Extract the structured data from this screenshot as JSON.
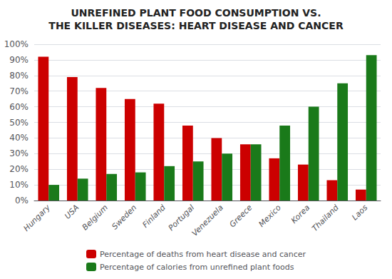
{
  "chart_data": {
    "type": "bar",
    "title": "UNREFINED PLANT FOOD CONSUMPTION VS.",
    "subtitle": "THE KILLER DISEASES: HEART DISEASE AND CANCER",
    "categories": [
      "Hungary",
      "USA",
      "Belgium",
      "Sweden",
      "Finland",
      "Portugal",
      "Venezuela",
      "Greece",
      "Mexico",
      "Korea",
      "Thailand",
      "Laos"
    ],
    "series": [
      {
        "name": "Percentage of deaths from heart disease and cancer",
        "color": "#cc0000",
        "values": [
          92,
          79,
          72,
          65,
          62,
          48,
          40,
          36,
          27,
          23,
          13,
          7
        ]
      },
      {
        "name": "Percentage of calories from unrefined plant foods",
        "color": "#1a7a1a",
        "values": [
          10,
          14,
          17,
          18,
          22,
          25,
          30,
          36,
          48,
          60,
          75,
          93
        ]
      }
    ],
    "ylim": [
      0,
      100
    ],
    "yticks": [
      {
        "value": 0,
        "label": "0%"
      },
      {
        "value": 10,
        "label": "10%"
      },
      {
        "value": 20,
        "label": "20%"
      },
      {
        "value": 30,
        "label": "30%"
      },
      {
        "value": 40,
        "label": "40%"
      },
      {
        "value": 50,
        "label": "50%"
      },
      {
        "value": 60,
        "label": "60%"
      },
      {
        "value": 70,
        "label": "70%"
      },
      {
        "value": 80,
        "label": "80%"
      },
      {
        "value": 90,
        "label": "90%"
      },
      {
        "value": 100,
        "label": "100%"
      }
    ],
    "grid": true,
    "legend": "bottom"
  }
}
